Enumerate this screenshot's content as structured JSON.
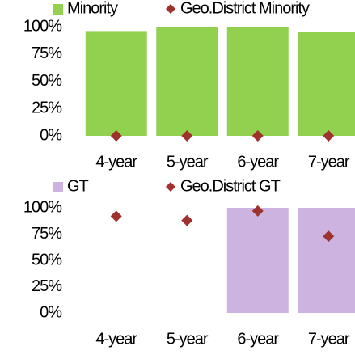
{
  "chart_data": [
    {
      "type": "bar",
      "categories": [
        "4-year",
        "5-year",
        "6-year",
        "7-year"
      ],
      "series": [
        {
          "name": "Minority",
          "type": "bar",
          "color": "#92d050",
          "values": [
            96,
            100,
            100,
            95
          ]
        },
        {
          "name": "Geo.District Minority",
          "type": "scatter",
          "marker": "diamond",
          "color": "#a0322d",
          "values": [
            0,
            0,
            0,
            0
          ]
        }
      ],
      "ylim": [
        0,
        100
      ],
      "yticks": [
        {
          "value": 0,
          "label": "0%"
        },
        {
          "value": 25,
          "label": "25%"
        },
        {
          "value": 50,
          "label": "50%"
        },
        {
          "value": 75,
          "label": "75%"
        },
        {
          "value": 100,
          "label": "100%"
        }
      ],
      "legend": "top"
    },
    {
      "type": "bar",
      "categories": [
        "4-year",
        "5-year",
        "6-year",
        "7-year"
      ],
      "series": [
        {
          "name": "GT",
          "type": "bar",
          "color": "#ccb3e0",
          "values": [
            0,
            0,
            100,
            100
          ]
        },
        {
          "name": "Geo.District GT",
          "type": "scatter",
          "marker": "diamond",
          "color": "#a0322d",
          "values": [
            92,
            88,
            97,
            73
          ]
        }
      ],
      "ylim": [
        0,
        100
      ],
      "yticks": [
        {
          "value": 0,
          "label": "0%"
        },
        {
          "value": 25,
          "label": "25%"
        },
        {
          "value": 50,
          "label": "50%"
        },
        {
          "value": 75,
          "label": "75%"
        },
        {
          "value": 100,
          "label": "100%"
        }
      ],
      "legend": "top"
    }
  ]
}
